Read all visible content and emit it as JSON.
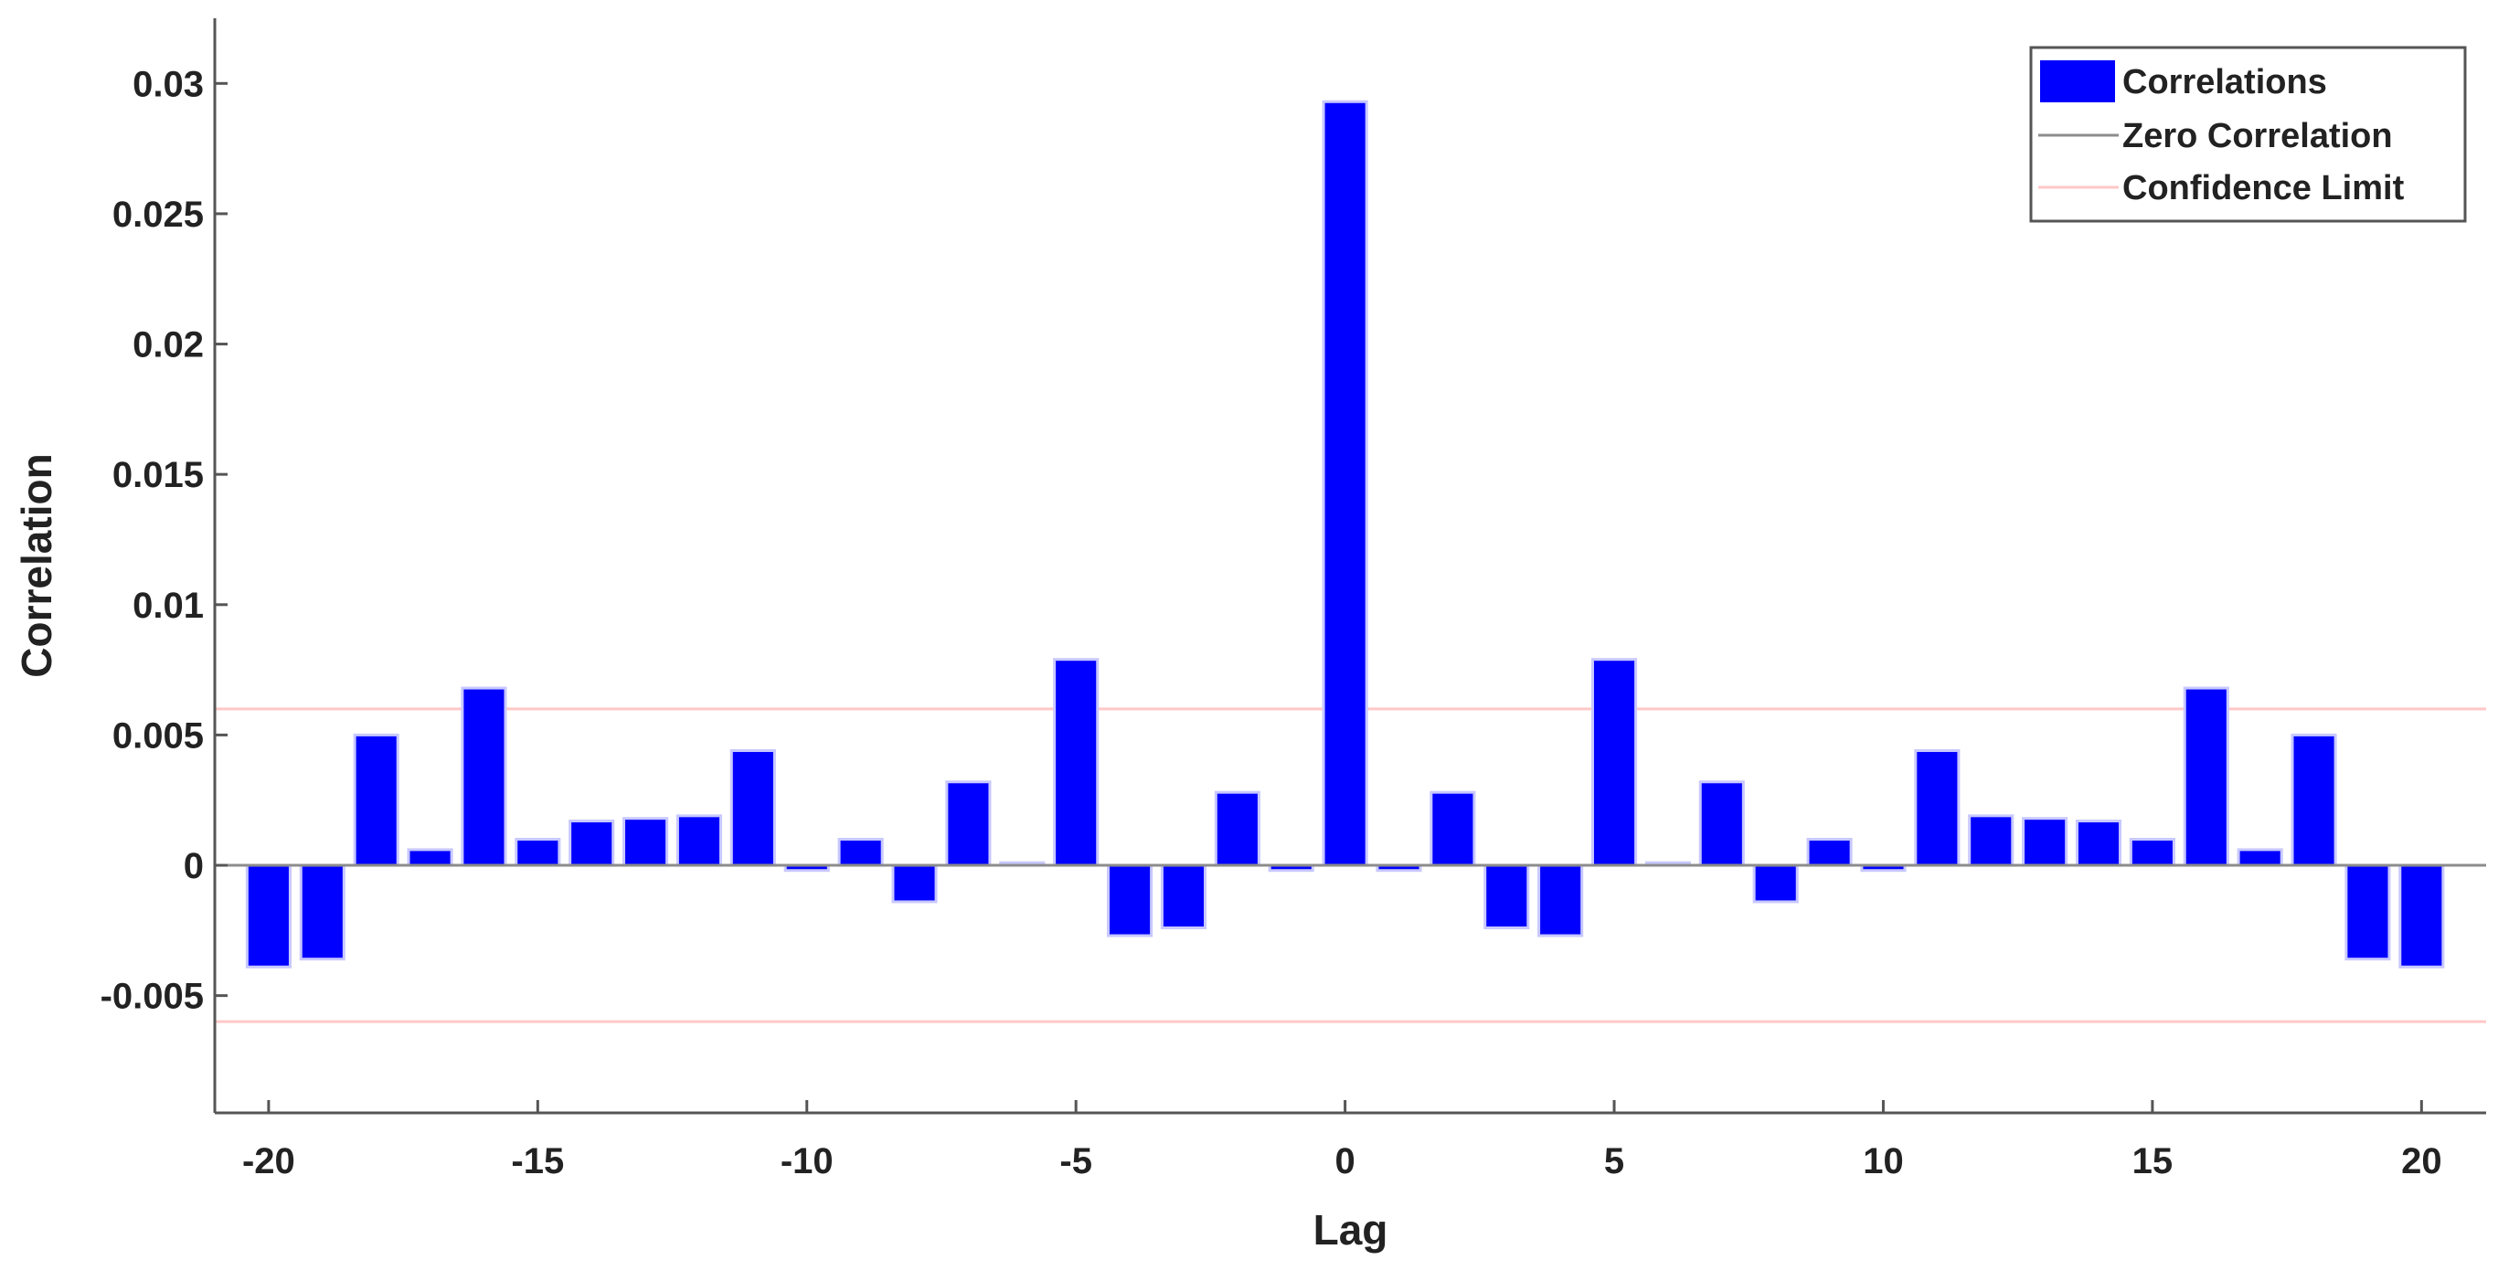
{
  "chart_data": {
    "type": "bar",
    "xlabel": "Lag",
    "ylabel": "Correlation",
    "x": [
      -20,
      -19,
      -18,
      -17,
      -16,
      -15,
      -14,
      -13,
      -12,
      -11,
      -10,
      -9,
      -8,
      -7,
      -6,
      -5,
      -4,
      -3,
      -2,
      -1,
      0,
      1,
      2,
      3,
      4,
      5,
      6,
      7,
      8,
      9,
      10,
      11,
      12,
      13,
      14,
      15,
      16,
      17,
      18,
      19,
      20
    ],
    "values": [
      -0.0039,
      -0.0036,
      0.005,
      0.0006,
      0.0068,
      0.001,
      0.0017,
      0.0018,
      0.0019,
      0.0044,
      -0.0002,
      0.001,
      -0.0014,
      0.0032,
      0.0001,
      0.0079,
      -0.0027,
      -0.0024,
      0.0028,
      -0.0002,
      0.0293,
      -0.0002,
      0.0028,
      -0.0024,
      -0.0027,
      0.0079,
      0.0001,
      0.0032,
      -0.0014,
      0.001,
      -0.0002,
      0.0044,
      0.0019,
      0.0018,
      0.0017,
      0.001,
      0.0068,
      0.0006,
      0.005,
      -0.0036,
      -0.0039
    ],
    "xlim": [
      -21,
      21.2
    ],
    "ylim": [
      -0.0095,
      0.0325
    ],
    "x_ticks": [
      -20,
      -15,
      -10,
      -5,
      0,
      5,
      10,
      15,
      20
    ],
    "x_tick_labels": [
      "-20",
      "-15",
      "-10",
      "-5",
      "0",
      "5",
      "10",
      "15",
      "20"
    ],
    "y_ticks": [
      -0.005,
      0,
      0.005,
      0.01,
      0.015,
      0.02,
      0.025,
      0.03
    ],
    "y_tick_labels": [
      "-0.005",
      "0",
      "0.005",
      "0.01",
      "0.015",
      "0.02",
      "0.025",
      "0.03"
    ],
    "zero_line": 0,
    "confidence_limit": [
      0.006,
      -0.006
    ],
    "grid": false,
    "legend": {
      "position": "top-right",
      "entries": [
        {
          "label": "Correlations",
          "type": "bar"
        },
        {
          "label": "Zero Correlation",
          "type": "line"
        },
        {
          "label": "Confidence Limit",
          "type": "line"
        }
      ]
    },
    "colors": {
      "bar": "#0000ff",
      "bar_edge": "#c8c8ff",
      "zero_line": "#8c8c8c",
      "confidence": "#ffc8c8",
      "axis": "#555555"
    }
  }
}
